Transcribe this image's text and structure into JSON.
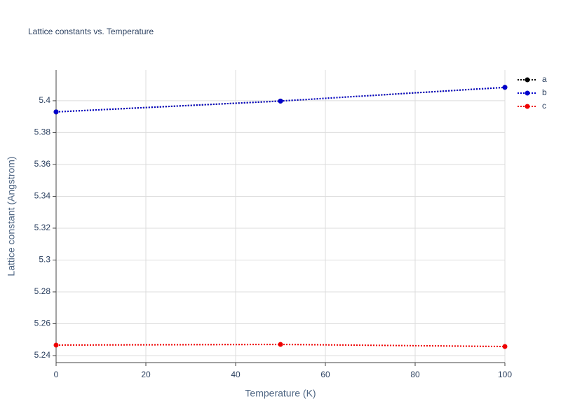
{
  "chart_data": {
    "type": "line",
    "title": "Lattice constants vs. Temperature",
    "x_label": "Temperature (K)",
    "y_label": "Lattice constant (Angstrom)",
    "x": [
      0,
      50,
      100
    ],
    "series": [
      {
        "name": "a",
        "color": "#000000",
        "values": [
          5.393,
          5.3998,
          5.4084
        ]
      },
      {
        "name": "b",
        "color": "#0000cc",
        "values": [
          5.393,
          5.3998,
          5.4084
        ]
      },
      {
        "name": "c",
        "color": "#ee0000",
        "values": [
          5.2466,
          5.247,
          5.2457
        ]
      }
    ],
    "xlim": [
      0,
      100
    ],
    "xticks": [
      0,
      20,
      40,
      60,
      80,
      100
    ],
    "ylim": [
      5.2356,
      5.4193
    ],
    "yticks": [
      5.24,
      5.26,
      5.28,
      5.3,
      5.32,
      5.34,
      5.36,
      5.38,
      5.4
    ],
    "grid": true,
    "legend": "right"
  }
}
